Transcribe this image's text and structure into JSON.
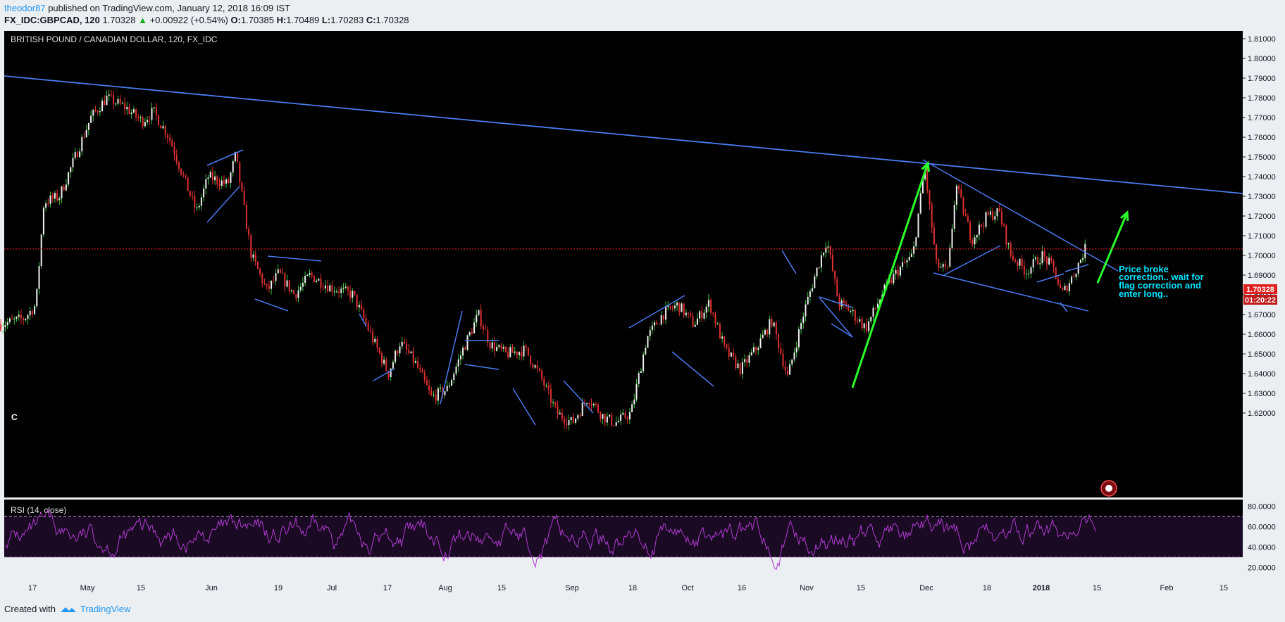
{
  "header": {
    "author": "theodor87",
    "published": "published on TradingView.com, January 12, 2018 16:09 IST"
  },
  "quote": {
    "symbol": "FX_IDC:GBPCAD, 120",
    "last": "1.70328",
    "change": "+0.00922 (+0.54%)",
    "o_label": "O:",
    "o": "1.70385",
    "h_label": "H:",
    "h": "1.70489",
    "l_label": "L:",
    "l": "1.70283",
    "c_label": "C:",
    "c": "1.70328"
  },
  "footer": {
    "created_with": "Created with",
    "brand": "TradingView"
  },
  "colors": {
    "background": "#000000",
    "trendline": "#4a7bef",
    "arrow": "#2bff2b",
    "annotation": "#00e5ff",
    "bull": "#40c040",
    "bear": "#e03030",
    "rsi": "#b13bd1",
    "price_line": "#ff2020"
  },
  "chart_data": {
    "type": "candlestick",
    "title": "BRITISH POUND / CANADIAN DOLLAR, 120, FX_IDC",
    "price_ylim": [
      1.613,
      1.818
    ],
    "y_ticks": [
      "1.81000",
      "1.80000",
      "1.79000",
      "1.78000",
      "1.77000",
      "1.76000",
      "1.75000",
      "1.74000",
      "1.73000",
      "1.72000",
      "1.71000",
      "1.70000",
      "1.69000",
      "1.68000",
      "1.67000",
      "1.66000",
      "1.65000",
      "1.64000",
      "1.63000",
      "1.62000"
    ],
    "x_ticks": [
      "17",
      "May",
      "15",
      "Jun",
      "19",
      "Jul",
      "17",
      "Aug",
      "15",
      "Sep",
      "18",
      "Oct",
      "16",
      "Nov",
      "15",
      "Dec",
      "18",
      "2018",
      "15",
      "Feb",
      "15"
    ],
    "price_path": [
      {
        "t": "Apr 10",
        "p": 1.665
      },
      {
        "t": "Apr 16",
        "p": 1.668
      },
      {
        "t": "Apr 19",
        "p": 1.675
      },
      {
        "t": "Apr 21",
        "p": 1.727
      },
      {
        "t": "Apr 25",
        "p": 1.73
      },
      {
        "t": "Apr 28",
        "p": 1.745
      },
      {
        "t": "May 3",
        "p": 1.77
      },
      {
        "t": "May 7",
        "p": 1.78
      },
      {
        "t": "May 12",
        "p": 1.775
      },
      {
        "t": "May 16",
        "p": 1.768
      },
      {
        "t": "May 19",
        "p": 1.773
      },
      {
        "t": "May 23",
        "p": 1.76
      },
      {
        "t": "May 27",
        "p": 1.738
      },
      {
        "t": "May 30",
        "p": 1.722
      },
      {
        "t": "Jun 2",
        "p": 1.74
      },
      {
        "t": "Jun 7",
        "p": 1.736
      },
      {
        "t": "Jun 9",
        "p": 1.751
      },
      {
        "t": "Jun 13",
        "p": 1.7
      },
      {
        "t": "Jun 17",
        "p": 1.682
      },
      {
        "t": "Jun 20",
        "p": 1.691
      },
      {
        "t": "Jun 24",
        "p": 1.68
      },
      {
        "t": "Jun 28",
        "p": 1.69
      },
      {
        "t": "Jul 3",
        "p": 1.684
      },
      {
        "t": "Jul 9",
        "p": 1.68
      },
      {
        "t": "Jul 13",
        "p": 1.662
      },
      {
        "t": "Jul 18",
        "p": 1.64
      },
      {
        "t": "Jul 21",
        "p": 1.656
      },
      {
        "t": "Jul 25",
        "p": 1.645
      },
      {
        "t": "Jul 29",
        "p": 1.628
      },
      {
        "t": "Aug 2",
        "p": 1.632
      },
      {
        "t": "Aug 6",
        "p": 1.652
      },
      {
        "t": "Aug 10",
        "p": 1.67
      },
      {
        "t": "Aug 13",
        "p": 1.655
      },
      {
        "t": "Aug 17",
        "p": 1.65
      },
      {
        "t": "Aug 22",
        "p": 1.652
      },
      {
        "t": "Aug 26",
        "p": 1.638
      },
      {
        "t": "Aug 30",
        "p": 1.62
      },
      {
        "t": "Sep 3",
        "p": 1.615
      },
      {
        "t": "Sep 7",
        "p": 1.628
      },
      {
        "t": "Sep 11",
        "p": 1.618
      },
      {
        "t": "Sep 14",
        "p": 1.615
      },
      {
        "t": "Sep 18",
        "p": 1.62
      },
      {
        "t": "Sep 22",
        "p": 1.658
      },
      {
        "t": "Sep 26",
        "p": 1.67
      },
      {
        "t": "Sep 30",
        "p": 1.675
      },
      {
        "t": "Oct 4",
        "p": 1.665
      },
      {
        "t": "Oct 8",
        "p": 1.676
      },
      {
        "t": "Oct 12",
        "p": 1.652
      },
      {
        "t": "Oct 16",
        "p": 1.642
      },
      {
        "t": "Oct 20",
        "p": 1.653
      },
      {
        "t": "Oct 24",
        "p": 1.667
      },
      {
        "t": "Oct 28",
        "p": 1.638
      },
      {
        "t": "Nov 1",
        "p": 1.67
      },
      {
        "t": "Nov 4",
        "p": 1.69
      },
      {
        "t": "Nov 7",
        "p": 1.708
      },
      {
        "t": "Nov 10",
        "p": 1.676
      },
      {
        "t": "Nov 13",
        "p": 1.672
      },
      {
        "t": "Nov 17",
        "p": 1.663
      },
      {
        "t": "Nov 21",
        "p": 1.68
      },
      {
        "t": "Nov 25",
        "p": 1.692
      },
      {
        "t": "Nov 29",
        "p": 1.7
      },
      {
        "t": "Dec 2",
        "p": 1.745
      },
      {
        "t": "Dec 5",
        "p": 1.695
      },
      {
        "t": "Dec 8",
        "p": 1.692
      },
      {
        "t": "Dec 10",
        "p": 1.736
      },
      {
        "t": "Dec 14",
        "p": 1.708
      },
      {
        "t": "Dec 18",
        "p": 1.72
      },
      {
        "t": "Dec 21",
        "p": 1.722
      },
      {
        "t": "Dec 24",
        "p": 1.7
      },
      {
        "t": "Dec 28",
        "p": 1.692
      },
      {
        "t": "Jan 1",
        "p": 1.7
      },
      {
        "t": "Jan 4",
        "p": 1.693
      },
      {
        "t": "Jan 6",
        "p": 1.68
      },
      {
        "t": "Jan 9",
        "p": 1.69
      },
      {
        "t": "Jan 12",
        "p": 1.7033
      }
    ],
    "last_price": "1.70328",
    "countdown": "01:20:22",
    "annotation": [
      "Price broke",
      "correction.. wait for",
      "flag correction and",
      "enter long.."
    ],
    "rsi": {
      "label": "RSI (14, close)",
      "ylim": [
        15,
        90
      ],
      "y_ticks": [
        "80.0000",
        "60.0000",
        "40.0000",
        "20.0000"
      ],
      "bands": [
        70,
        30
      ]
    }
  }
}
